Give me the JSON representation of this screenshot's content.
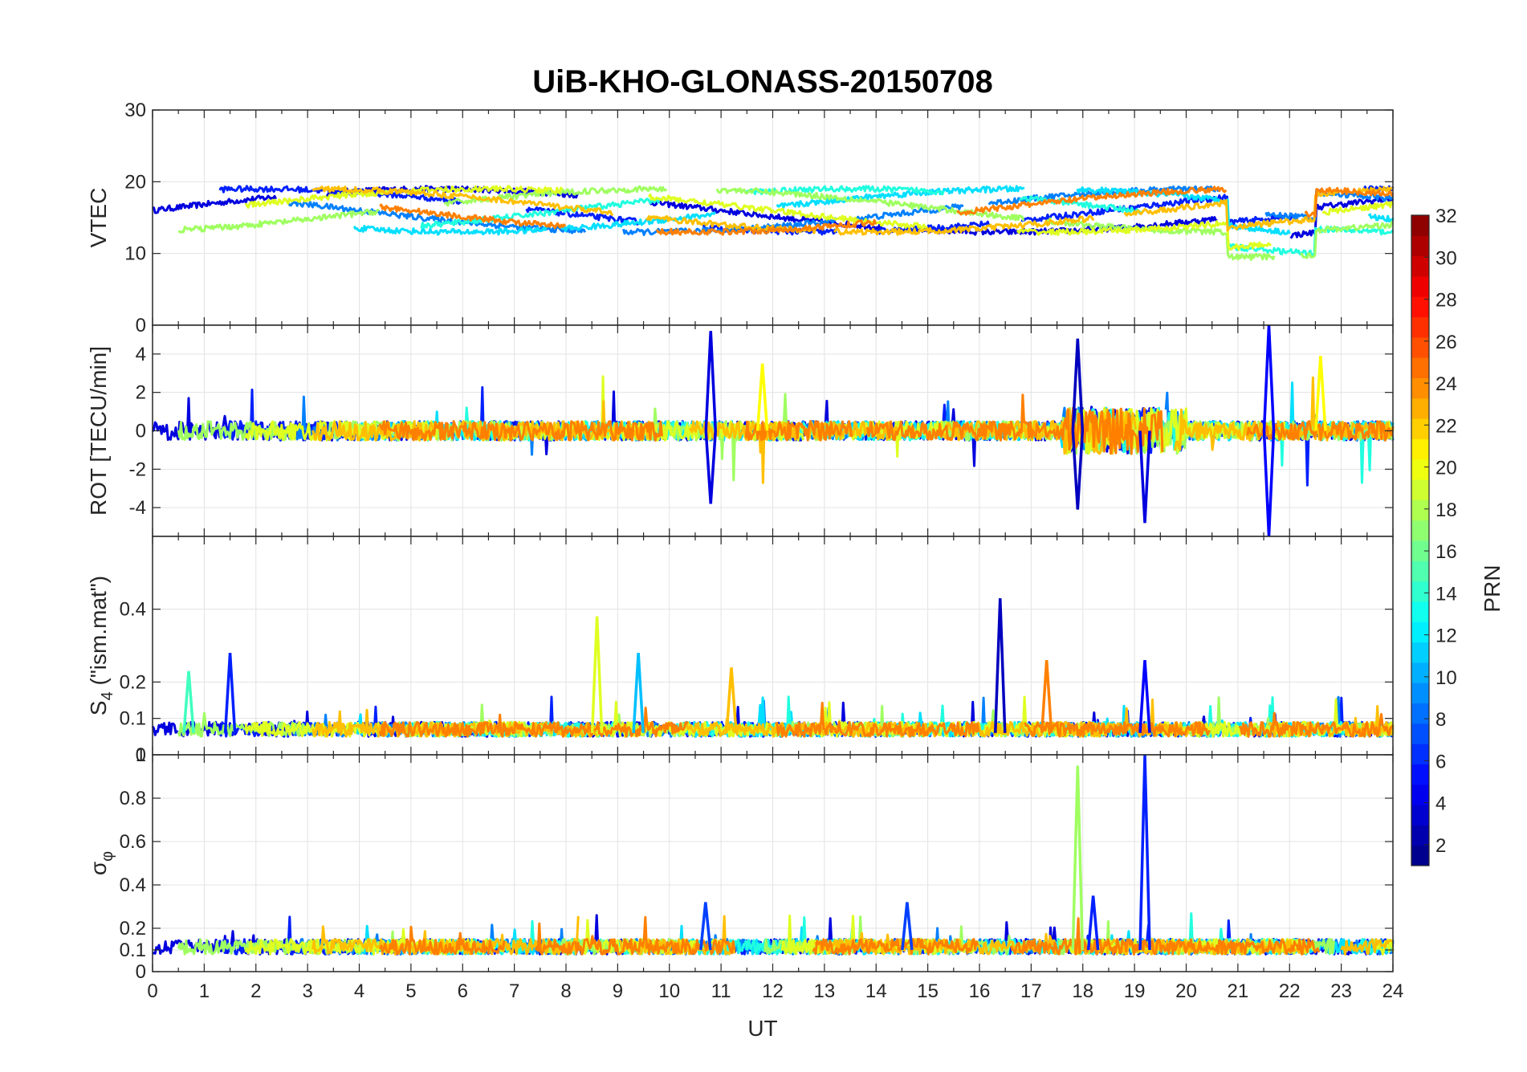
{
  "chart_data": {
    "type": "line",
    "title": "UiB-KHO-GLONASS-20150708",
    "xlabel": "UT",
    "x_ticks": [
      "0",
      "1",
      "2",
      "3",
      "4",
      "5",
      "6",
      "7",
      "8",
      "9",
      "10",
      "11",
      "12",
      "13",
      "14",
      "15",
      "16",
      "17",
      "18",
      "19",
      "20",
      "21",
      "22",
      "23",
      "24"
    ],
    "xlim": [
      0,
      24
    ],
    "grid": true,
    "colorbar": {
      "label": "PRN",
      "colormap": "jet",
      "range": [
        1,
        32
      ],
      "ticks": [
        "2",
        "4",
        "6",
        "8",
        "10",
        "12",
        "14",
        "16",
        "18",
        "20",
        "22",
        "24",
        "26",
        "28",
        "30",
        "32"
      ]
    },
    "panels": [
      {
        "ylabel": "VTEC",
        "ylim": [
          0,
          30
        ],
        "yticks": [
          "0",
          "10",
          "20",
          "30"
        ],
        "series_baseline": 16,
        "notes": "multiple satellite tracks between ~10 and ~22 TECU"
      },
      {
        "ylabel": "ROT [TECU/min]",
        "ylim": [
          -5.5,
          5.5
        ],
        "yticks": [
          "-4",
          "-2",
          "0",
          "2",
          "4"
        ],
        "series_baseline": 0,
        "notes": "noisy around 0; spikes near 10.8 UT, 17.9 UT, 19.2 UT, 21.6 UT"
      },
      {
        "ylabel": "S4 (\"ism.mat\")",
        "ylabel_main": "S",
        "ylabel_sub": "4",
        "ylabel_rest": " (\"ism.mat\")",
        "ylim": [
          0,
          0.6
        ],
        "yticks": [
          "0",
          "0.1",
          "0.2",
          "0.4"
        ],
        "series_baseline": 0.06,
        "notes": "peaks ~0.43 at 16.4 UT, ~0.38 at 8.6 UT, ~0.28 at 9.4 UT"
      },
      {
        "ylabel": "σφ",
        "ylabel_main": "σ",
        "ylabel_sub": "φ",
        "ylim": [
          0,
          1
        ],
        "yticks": [
          "0",
          "0.1",
          "0.2",
          "0.4",
          "0.6",
          "0.8",
          "1"
        ],
        "series_baseline": 0.1,
        "notes": "baseline ~0.1; peaks ~0.95 at 17.9 UT and ~1.0 at 19.2 UT"
      }
    ]
  }
}
